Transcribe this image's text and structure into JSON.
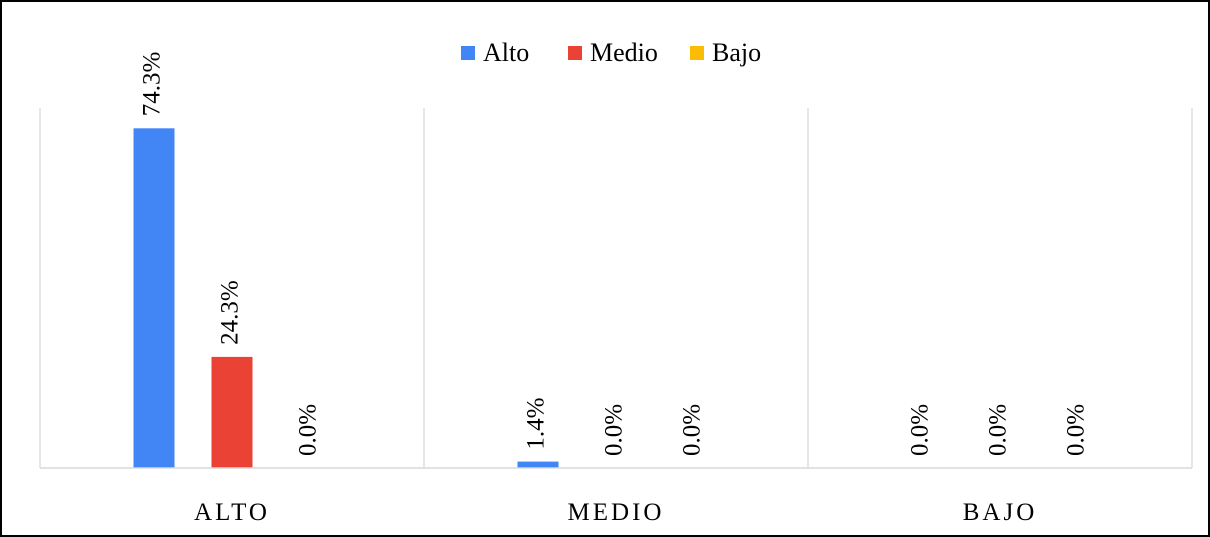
{
  "chart_data": {
    "type": "bar",
    "categories": [
      "ALTO",
      "MEDIO",
      "BAJO"
    ],
    "series": [
      {
        "name": "Alto",
        "color": "#4285f4",
        "values": [
          74.3,
          1.4,
          0.0
        ],
        "labels": [
          "74.3%",
          "1.4%",
          "0.0%"
        ]
      },
      {
        "name": "Medio",
        "color": "#ea4335",
        "values": [
          24.3,
          0.0,
          0.0
        ],
        "labels": [
          "24.3%",
          "0.0%",
          "0.0%"
        ]
      },
      {
        "name": "Bajo",
        "color": "#fbbc04",
        "values": [
          0.0,
          0.0,
          0.0
        ],
        "labels": [
          "0.0%",
          "0.0%",
          "0.0%"
        ]
      }
    ],
    "ylim": [
      0,
      100
    ],
    "grid": false,
    "legend": "top-center",
    "axis_color": "#d9d9d9"
  }
}
